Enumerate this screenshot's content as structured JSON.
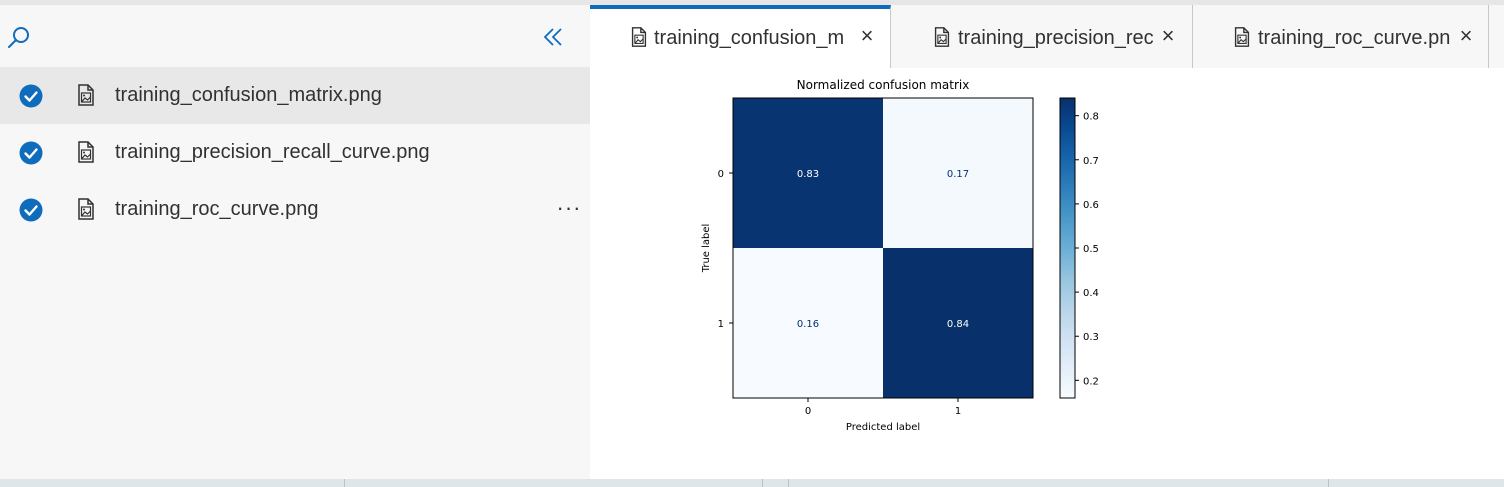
{
  "sidebar": {
    "files": [
      {
        "name": "training_confusion_matrix.png",
        "checked": true,
        "selected": true
      },
      {
        "name": "training_precision_recall_curve.png",
        "checked": true,
        "selected": false
      },
      {
        "name": "training_roc_curve.png",
        "checked": true,
        "selected": false
      }
    ],
    "more_label": "···"
  },
  "tabs": [
    {
      "label": "training_confusion_m",
      "active": true
    },
    {
      "label": "training_precision_rec",
      "active": false
    },
    {
      "label": "training_roc_curve.pn",
      "active": false
    }
  ],
  "tab_close_label": "×",
  "colors": {
    "accent": "#0f6cbd",
    "check": "#0f6cbd",
    "matrix_dark": "#08306b",
    "matrix_light": "#f7fbff"
  },
  "chart_data": {
    "type": "heatmap",
    "title": "Normalized confusion matrix",
    "xlabel": "Predicted label",
    "ylabel": "True label",
    "x_categories": [
      "0",
      "1"
    ],
    "y_categories": [
      "0",
      "1"
    ],
    "values": [
      [
        0.83,
        0.17
      ],
      [
        0.16,
        0.84
      ]
    ],
    "cell_labels": [
      [
        "0.83",
        "0.17"
      ],
      [
        "0.16",
        "0.84"
      ]
    ],
    "colorbar": {
      "min": 0.16,
      "max": 0.84,
      "ticks": [
        "0.2",
        "0.3",
        "0.4",
        "0.5",
        "0.6",
        "0.7",
        "0.8"
      ],
      "colormap": "Blues"
    }
  }
}
